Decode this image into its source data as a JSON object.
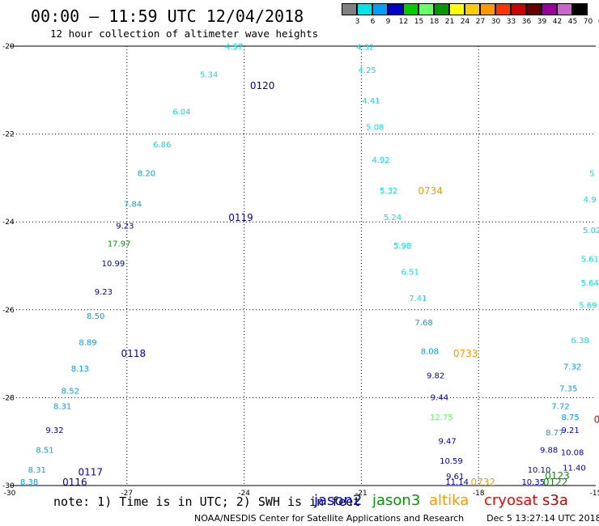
{
  "header": {
    "title": "00:00 – 11:59 UTC 12/04/2018",
    "subtitle": "12 hour collection of altimeter wave heights"
  },
  "colorbar": {
    "labels": [
      "3",
      "6",
      "9",
      "12",
      "15",
      "18",
      "21",
      "24",
      "27",
      "30",
      "33",
      "36",
      "39",
      "42",
      "45",
      "70",
      "(ft)"
    ],
    "colors": [
      "#808080",
      "#00e5e5",
      "#00a0ff",
      "#0000cc",
      "#00cc00",
      "#66ff66",
      "#009900",
      "#ffff00",
      "#ffcc00",
      "#ff9900",
      "#ff3300",
      "#cc0000",
      "#660000",
      "#990099",
      "#cc66cc",
      "#000000"
    ]
  },
  "note": "note: 1) Time is in UTC; 2) SWH is in feet",
  "missions": [
    {
      "name": "jason2",
      "color": "#0000ff"
    },
    {
      "name": "jason3",
      "color": "#009900"
    },
    {
      "name": "altika",
      "color": "#ff9900"
    },
    {
      "name": "cryosat",
      "color": "#ff0000"
    },
    {
      "name": "s3a",
      "color": "#cc0000"
    }
  ],
  "credit": "NOAA/NESDIS Center for Satellite Applications and Research",
  "timestamp": "Dec  5 13:27:14 UTC 2018",
  "chart_data": {
    "type": "scatter",
    "xlim": [
      -30,
      -15
    ],
    "ylim": [
      -30,
      -20
    ],
    "x_ticks": [
      -30,
      -27,
      -24,
      -21,
      -18,
      -15
    ],
    "y_ticks": [
      -20,
      -22,
      -24,
      -26,
      -28,
      -30
    ],
    "grid": true,
    "time_labels": [
      {
        "text": "0120",
        "x": -23.85,
        "y": -20.9,
        "color": "#0000cc"
      },
      {
        "text": "0119",
        "x": -24.4,
        "y": -23.9,
        "color": "#0000cc"
      },
      {
        "text": "0118",
        "x": -27.15,
        "y": -27.0,
        "color": "#0000cc"
      },
      {
        "text": "0117",
        "x": -28.25,
        "y": -29.7,
        "color": "#0000cc"
      },
      {
        "text": "0116",
        "x": -28.65,
        "y": -29.93,
        "color": "#0000cc"
      },
      {
        "text": "0734",
        "x": -19.55,
        "y": -23.3,
        "color": "#ff9900"
      },
      {
        "text": "0733",
        "x": -18.65,
        "y": -27.0,
        "color": "#ff9900"
      },
      {
        "text": "0732",
        "x": -18.2,
        "y": -29.93,
        "color": "#ff9900"
      },
      {
        "text": "0123",
        "x": -16.3,
        "y": -29.78,
        "color": "#009900"
      },
      {
        "text": "0122",
        "x": -16.35,
        "y": -29.93,
        "color": "#009900"
      },
      {
        "text": "0",
        "x": -15.05,
        "y": -28.5,
        "color": "#ff0000"
      }
    ],
    "tracks": [
      {
        "points": [
          {
            "x": -24.26,
            "y": -20.02,
            "v": "4.57",
            "c": "#00e5e5"
          },
          {
            "x": -24.9,
            "y": -20.65,
            "v": "5.34",
            "c": "#00e5e5"
          },
          {
            "x": -25.6,
            "y": -21.5,
            "v": "6.04",
            "c": "#00e5e5"
          },
          {
            "x": -26.1,
            "y": -22.25,
            "v": "6.86",
            "c": "#00e5e5"
          },
          {
            "x": -26.5,
            "y": -22.9,
            "v": "8.20",
            "c": "#00a0ff"
          },
          {
            "x": -26.85,
            "y": -23.6,
            "v": "7.84",
            "c": "#00a0ff"
          },
          {
            "x": -27.05,
            "y": -24.1,
            "v": "9.23",
            "c": "#0000cc"
          },
          {
            "x": -27.2,
            "y": -24.5,
            "v": "17.97",
            "c": "#009900"
          },
          {
            "x": -27.35,
            "y": -24.95,
            "v": "10.99",
            "c": "#0000cc"
          },
          {
            "x": -27.6,
            "y": -25.6,
            "v": "9.23",
            "c": "#0000cc"
          },
          {
            "x": -27.8,
            "y": -26.15,
            "v": "8.50",
            "c": "#00a0ff"
          },
          {
            "x": -28.0,
            "y": -26.75,
            "v": "8.89",
            "c": "#00a0ff"
          },
          {
            "x": -28.2,
            "y": -27.35,
            "v": "8.13",
            "c": "#00a0ff"
          },
          {
            "x": -28.45,
            "y": -27.85,
            "v": "8.52",
            "c": "#00a0ff"
          },
          {
            "x": -28.65,
            "y": -28.2,
            "v": "8.31",
            "c": "#00a0ff"
          },
          {
            "x": -28.85,
            "y": -28.75,
            "v": "9.32",
            "c": "#0000cc"
          },
          {
            "x": -29.1,
            "y": -29.2,
            "v": "8.51",
            "c": "#00a0ff"
          },
          {
            "x": -29.3,
            "y": -29.65,
            "v": "8.31",
            "c": "#00a0ff"
          },
          {
            "x": -29.5,
            "y": -29.93,
            "v": "8.38",
            "c": "#00a0ff"
          }
        ]
      },
      {
        "points": [
          {
            "x": -20.9,
            "y": -20.03,
            "v": "4.32",
            "c": "#00e5e5"
          },
          {
            "x": -20.85,
            "y": -20.55,
            "v": "4.25",
            "c": "#00e5e5"
          },
          {
            "x": -20.75,
            "y": -21.25,
            "v": "4.41",
            "c": "#00e5e5"
          },
          {
            "x": -20.65,
            "y": -21.85,
            "v": "5.08",
            "c": "#00e5e5"
          },
          {
            "x": -20.5,
            "y": -22.6,
            "v": "4.92",
            "c": "#00e5e5"
          },
          {
            "x": -20.3,
            "y": -23.3,
            "v": "5.32",
            "c": "#00e5e5"
          },
          {
            "x": -20.2,
            "y": -23.9,
            "v": "5.24",
            "c": "#00e5e5"
          },
          {
            "x": -19.95,
            "y": -24.55,
            "v": "5.98",
            "c": "#00e5e5"
          },
          {
            "x": -19.75,
            "y": -25.15,
            "v": "6.51",
            "c": "#00e5e5"
          },
          {
            "x": -19.55,
            "y": -25.75,
            "v": "7.41",
            "c": "#00e5e5"
          },
          {
            "x": -19.4,
            "y": -26.3,
            "v": "7.68",
            "c": "#00a0ff"
          },
          {
            "x": -19.25,
            "y": -26.95,
            "v": "8.08",
            "c": "#00a0ff"
          },
          {
            "x": -19.1,
            "y": -27.5,
            "v": "9.82",
            "c": "#0000cc"
          },
          {
            "x": -19.0,
            "y": -28.0,
            "v": "9.44",
            "c": "#0000cc"
          },
          {
            "x": -18.95,
            "y": -28.45,
            "v": "12.75",
            "c": "#66ff66"
          },
          {
            "x": -18.8,
            "y": -29.0,
            "v": "9.47",
            "c": "#0000cc"
          },
          {
            "x": -18.7,
            "y": -29.45,
            "v": "10.59",
            "c": "#0000cc"
          },
          {
            "x": -18.6,
            "y": -29.8,
            "v": "9.61",
            "c": "#0000cc"
          },
          {
            "x": -18.55,
            "y": -29.93,
            "v": "11.14",
            "c": "#0000cc"
          }
        ]
      },
      {
        "points": [
          {
            "x": -15.1,
            "y": -22.9,
            "v": "5",
            "c": "#00e5e5"
          },
          {
            "x": -15.15,
            "y": -23.5,
            "v": "4.9",
            "c": "#00e5e5"
          },
          {
            "x": -15.1,
            "y": -24.2,
            "v": "5.02",
            "c": "#00e5e5"
          },
          {
            "x": -15.15,
            "y": -24.85,
            "v": "5.61",
            "c": "#00e5e5"
          },
          {
            "x": -15.15,
            "y": -25.4,
            "v": "5.64",
            "c": "#00e5e5"
          },
          {
            "x": -15.2,
            "y": -25.9,
            "v": "5.69",
            "c": "#00e5e5"
          },
          {
            "x": -15.4,
            "y": -26.7,
            "v": "6.38",
            "c": "#00e5e5"
          },
          {
            "x": -15.6,
            "y": -27.3,
            "v": "7.32",
            "c": "#00a0ff"
          },
          {
            "x": -15.7,
            "y": -27.8,
            "v": "7.35",
            "c": "#00a0ff"
          },
          {
            "x": -15.9,
            "y": -28.2,
            "v": "7.72",
            "c": "#00a0ff"
          },
          {
            "x": -15.65,
            "y": -28.45,
            "v": "8.75",
            "c": "#00a0ff"
          },
          {
            "x": -16.05,
            "y": -28.8,
            "v": "8.77",
            "c": "#00a0ff"
          },
          {
            "x": -15.65,
            "y": -28.75,
            "v": "9.21",
            "c": "#0000cc"
          },
          {
            "x": -16.2,
            "y": -29.2,
            "v": "9.88",
            "c": "#0000cc"
          },
          {
            "x": -15.6,
            "y": -29.25,
            "v": "10.08",
            "c": "#0000cc"
          },
          {
            "x": -16.45,
            "y": -29.65,
            "v": "10.10",
            "c": "#0000cc"
          },
          {
            "x": -15.55,
            "y": -29.6,
            "v": "11.40",
            "c": "#0000cc"
          },
          {
            "x": -16.6,
            "y": -29.93,
            "v": "10.35",
            "c": "#0000cc"
          }
        ]
      }
    ]
  }
}
